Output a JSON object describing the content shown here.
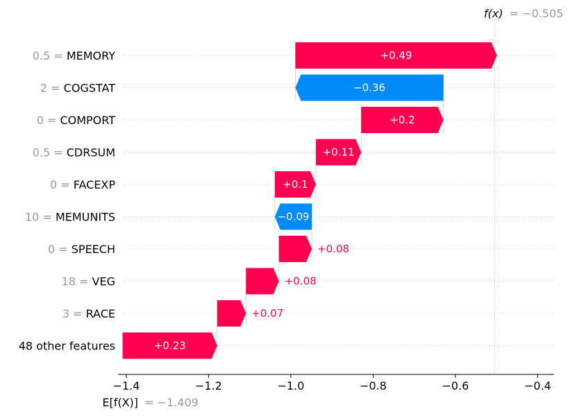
{
  "chart_data": {
    "type": "waterfall",
    "title": "",
    "base_value": -1.409,
    "base_value_label": "E[f(X)]",
    "base_value_text": "= −1.409",
    "output_value": -0.505,
    "output_value_label": "f(x)",
    "output_value_text": "= −0.505",
    "xlim": [
      -1.41,
      -0.36
    ],
    "xticks": [
      -1.4,
      -1.2,
      -1.0,
      -0.8,
      -0.6,
      -0.4
    ],
    "xtick_labels": [
      "−1.4",
      "−1.2",
      "−1.0",
      "−0.8",
      "−0.6",
      "−0.4"
    ],
    "features": [
      {
        "value": "0.5",
        "name": "MEMORY",
        "contribution": 0.49,
        "label": "+0.49"
      },
      {
        "value": "2",
        "name": "COGSTAT",
        "contribution": -0.36,
        "label": "−0.36"
      },
      {
        "value": "0",
        "name": "COMPORT",
        "contribution": 0.2,
        "label": "+0.2"
      },
      {
        "value": "0.5",
        "name": "CDRSUM",
        "contribution": 0.11,
        "label": "+0.11"
      },
      {
        "value": "0",
        "name": "FACEXP",
        "contribution": 0.1,
        "label": "+0.1"
      },
      {
        "value": "10",
        "name": "MEMUNITS",
        "contribution": -0.09,
        "label": "−0.09"
      },
      {
        "value": "0",
        "name": "SPEECH",
        "contribution": 0.08,
        "label": "+0.08"
      },
      {
        "value": "18",
        "name": "VEG",
        "contribution": 0.08,
        "label": "+0.08"
      },
      {
        "value": "3",
        "name": "RACE",
        "contribution": 0.07,
        "label": "+0.07"
      },
      {
        "value": "",
        "name": "48 other features",
        "contribution": 0.23,
        "label": "+0.23"
      }
    ],
    "colors": {
      "positive": "#ff0051",
      "negative": "#008bfb",
      "grid": "#cccccc",
      "muted_text": "#999999"
    }
  }
}
